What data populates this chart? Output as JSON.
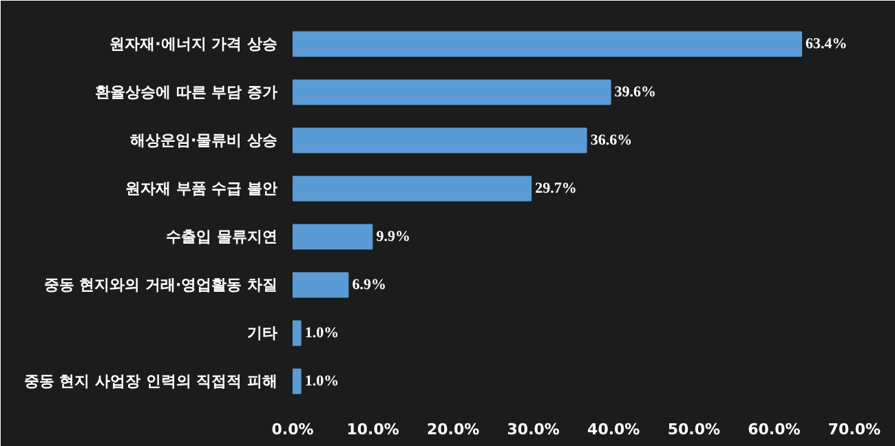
{
  "chart_data": {
    "type": "bar",
    "orientation": "horizontal",
    "categories": [
      "원자재·에너지 가격 상승",
      "환율상승에 따른 부담 증가",
      "해상운임·물류비 상승",
      "원자재 부품 수급 불안",
      "수출입 물류지연",
      "중동 현지와의 거래·영업활동 차질",
      "기타",
      "중동 현지 사업장 인력의 직접적 피해"
    ],
    "values": [
      63.4,
      39.6,
      36.6,
      29.7,
      9.9,
      6.9,
      1.0,
      1.0
    ],
    "value_labels": [
      "63.4%",
      "39.6%",
      "36.6%",
      "29.7%",
      "9.9%",
      "6.9%",
      "1.0%",
      "1.0%"
    ],
    "color": "#5b9bd5",
    "xlim": [
      0,
      70
    ],
    "xticks": [
      {
        "value": 0,
        "label": "0.0%"
      },
      {
        "value": 10,
        "label": "10.0%"
      },
      {
        "value": 20,
        "label": "20.0%"
      },
      {
        "value": 30,
        "label": "30.0%"
      },
      {
        "value": 40,
        "label": "40.0%"
      },
      {
        "value": 50,
        "label": "50.0%"
      },
      {
        "value": 60,
        "label": "60.0%"
      },
      {
        "value": 70,
        "label": "70.0%"
      }
    ],
    "grid": false
  }
}
